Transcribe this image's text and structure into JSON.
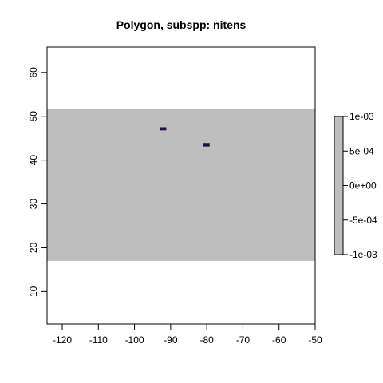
{
  "chart_data": {
    "type": "heatmap",
    "title": "Polygon, subspp: nitens",
    "xlabel": "",
    "ylabel": "",
    "xlim": [
      -124.2,
      -50
    ],
    "ylim": [
      2.6,
      65.8
    ],
    "x_ticks": [
      -120,
      -110,
      -100,
      -90,
      -80,
      -70,
      -60,
      -50
    ],
    "y_ticks": [
      10,
      20,
      30,
      40,
      50,
      60
    ],
    "x_tick_labels": [
      "-120",
      "-110",
      "-100",
      "-90",
      "-80",
      "-70",
      "-60",
      "-50"
    ],
    "y_tick_labels": [
      "10",
      "20",
      "30",
      "40",
      "50",
      "60"
    ],
    "raster_extent": {
      "xmin": -124.2,
      "xmax": -50,
      "ymin": 17,
      "ymax": 51.7
    },
    "raster_fill": "#bebebe",
    "cells": [
      {
        "xmin": -93,
        "xmax": -91.2,
        "ymin": 46.8,
        "ymax": 47.5,
        "color": "#2a0a3f"
      },
      {
        "xmin": -81,
        "xmax": -79.2,
        "ymin": 43.1,
        "ymax": 43.9,
        "color": "#2a0a3f"
      }
    ],
    "legend": {
      "position": "right",
      "range": [
        -0.001,
        0.001
      ],
      "color": "#bebebe",
      "ticks": [
        0.001,
        0.0005,
        0,
        -0.0005,
        -0.001
      ],
      "tick_labels": [
        "1e-03",
        "5e-04",
        "0e+00",
        "-5e-04",
        "-1e-03"
      ]
    }
  }
}
